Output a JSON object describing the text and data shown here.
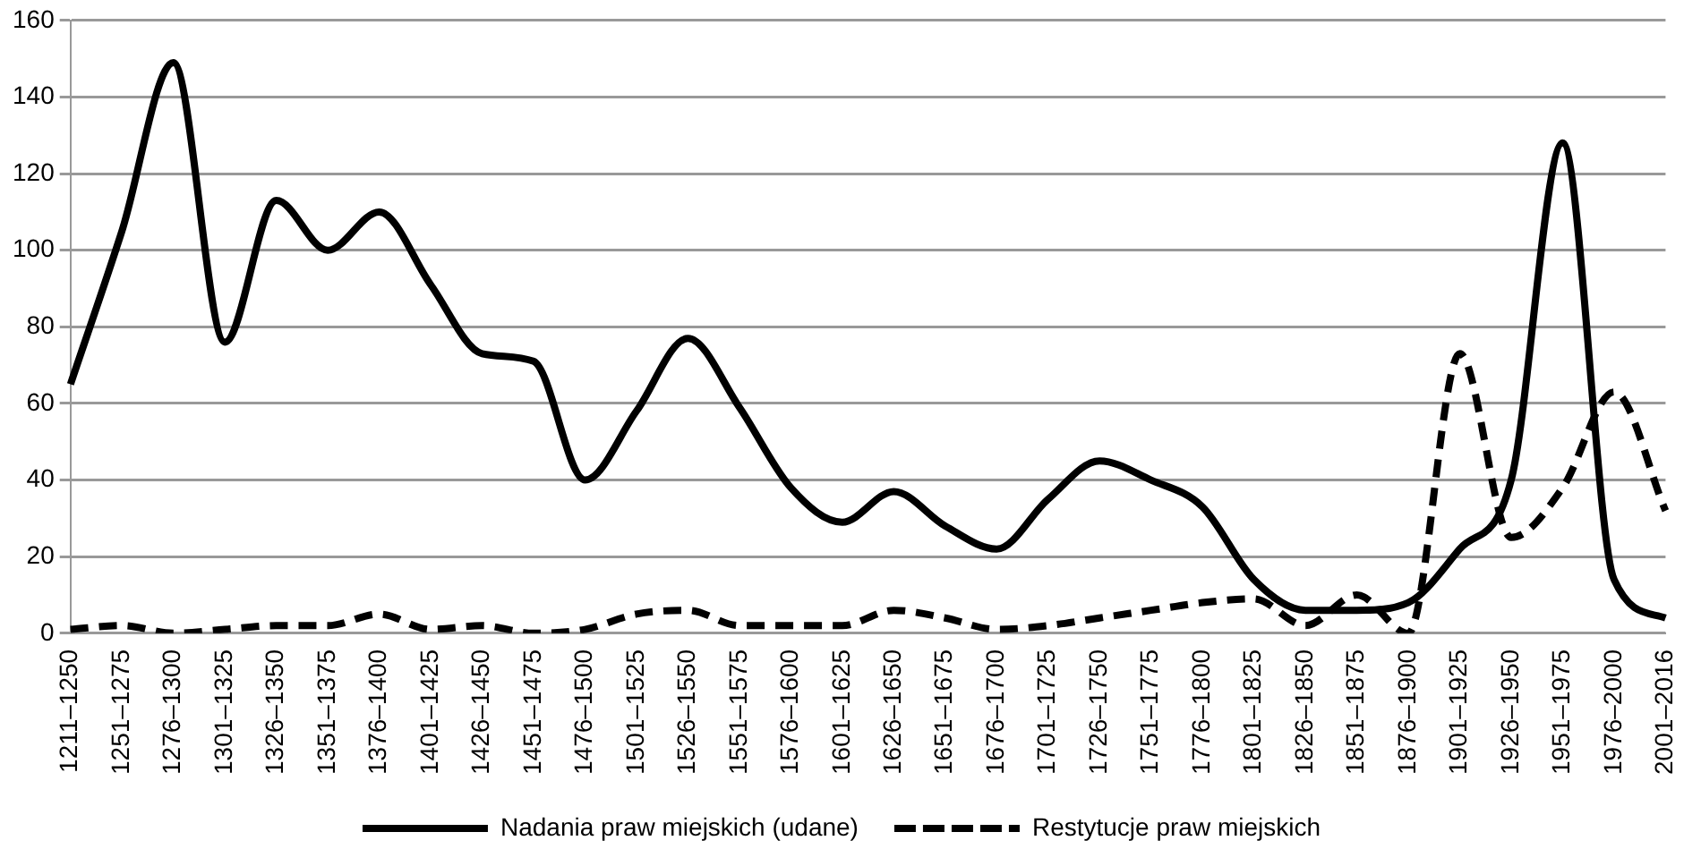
{
  "chart_data": {
    "type": "line",
    "categories": [
      "1211–1250",
      "1251–1275",
      "1276–1300",
      "1301–1325",
      "1326–1350",
      "1351–1375",
      "1376–1400",
      "1401–1425",
      "1426–1450",
      "1451–1475",
      "1476–1500",
      "1501–1525",
      "1526–1550",
      "1551–1575",
      "1576–1600",
      "1601–1625",
      "1626–1650",
      "1651–1675",
      "1676–1700",
      "1701–1725",
      "1726–1750",
      "1751–1775",
      "1776–1800",
      "1801–1825",
      "1826–1850",
      "1851–1875",
      "1876–1900",
      "1901–1925",
      "1926–1950",
      "1951–1975",
      "1976–2000",
      "2001–2016"
    ],
    "series": [
      {
        "name": "Nadania praw miejskich (udane)",
        "color": "#000000",
        "line_style": "solid",
        "values": [
          65,
          105,
          149,
          76,
          113,
          100,
          110,
          91,
          73,
          71,
          40,
          58,
          77,
          59,
          38,
          29,
          37,
          28,
          22,
          35,
          45,
          40,
          33,
          14,
          6,
          6,
          8,
          22,
          40,
          128,
          14,
          4
        ]
      },
      {
        "name": "Restytucje praw miejskich",
        "color": "#000000",
        "line_style": "dashed",
        "values": [
          1,
          2,
          0,
          1,
          2,
          2,
          5,
          1,
          2,
          0,
          1,
          5,
          6,
          2,
          2,
          2,
          6,
          4,
          1,
          2,
          4,
          6,
          8,
          9,
          2,
          10,
          0,
          73,
          25,
          38,
          63,
          32
        ]
      }
    ],
    "ylim": [
      0,
      160
    ],
    "yticks": [
      0,
      20,
      40,
      60,
      80,
      100,
      120,
      140,
      160
    ],
    "grid": "y",
    "legend": "bottom",
    "marker": "none"
  }
}
